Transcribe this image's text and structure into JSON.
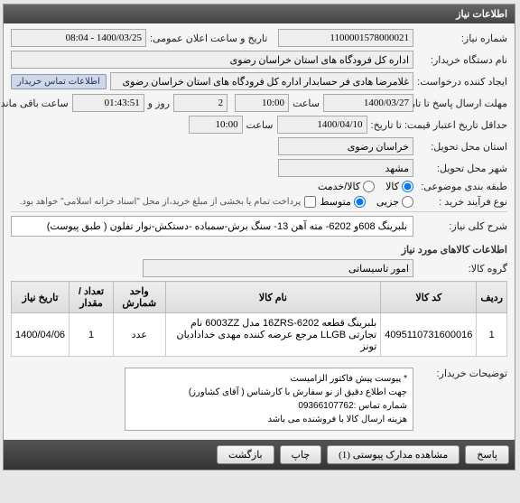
{
  "panel": {
    "title": "اطلاعات نیاز"
  },
  "fields": {
    "need_no": {
      "label": "شماره نیاز:",
      "value": "1100001578000021"
    },
    "announce_datetime": {
      "label": "تاریخ و ساعت اعلان عمومی:",
      "value": "1400/03/25 - 08:04"
    },
    "buyer_org": {
      "label": "نام دستگاه خریدار:",
      "value": "اداره کل فرودگاه های استان خراسان رضوی"
    },
    "request_creator": {
      "label": "ایجاد کننده درخواست:",
      "value": "غلامرضا هادی فر حسابدار اداره کل فرودگاه های استان خراسان رضوی"
    },
    "buyer_contact_btn": "اطلاعات تماس خریدار",
    "deadline": {
      "label": "مهلت ارسال پاسخ تا تاریخ:",
      "date": "1400/03/27",
      "time_label": "ساعت",
      "time": "10:00",
      "days": "2",
      "days_label": "روز و",
      "remain": "01:43:51",
      "remain_label": "ساعت باقی مانده"
    },
    "min_valid": {
      "label": "حداقل تاریخ اعتبار قیمت: تا تاریخ:",
      "date": "1400/04/10",
      "time_label": "ساعت",
      "time": "10:00"
    },
    "delivery_province": {
      "label": "استان محل تحویل:",
      "value": "خراسان رضوی"
    },
    "delivery_city": {
      "label": "شهر محل تحویل:",
      "value": "مشهد"
    },
    "category": {
      "label": "طبقه بندی موضوعی:",
      "options": {
        "goods": "کالا",
        "service": "کالا/خدمت"
      },
      "selected": "goods"
    },
    "buy_process": {
      "label": "نوع فرآیند خرید :",
      "options": {
        "low": "جزیی",
        "medium": "متوسط"
      },
      "selected": "medium",
      "note": "پرداخت تمام یا بخشی از مبلغ خرید،از محل \"اسناد خزانه اسلامی\" خواهد بود.",
      "checkbox_checked": false
    },
    "need_title": {
      "label": "شرح کلی نیاز:",
      "value": "بلبرینگ 608و 6202- مته آهن 13- سنگ برش-سمباده -دستکش-نوار تفلون ( طبق پیوست)"
    }
  },
  "items_section": {
    "title": "اطلاعات کالاهای مورد نیاز",
    "group_label": "گروه کالا:",
    "group_value": "امور تاسیساتی",
    "table": {
      "columns": [
        "ردیف",
        "کد کالا",
        "نام کالا",
        "واحد شمارش",
        "تعداد / مقدار",
        "تاریخ نیاز"
      ],
      "rows": [
        [
          "1",
          "4095110731600016",
          "بلبرینگ قطعه 16ZRS-6202 مدل 6003ZZ نام تجارتی LLGB مرجع عرضه کننده مهدی خدادادیان تونز",
          "عدد",
          "1",
          "1400/04/06"
        ]
      ]
    }
  },
  "buyer_desc": {
    "label": "توضیحات خریدار:",
    "lines": [
      "* پیوست پیش فاکتور الزامیست",
      "جهت اطلاع دقیق از نو سفارش با کارشناس   ( آقای کشاورز)",
      "شماره تماس :09366107762",
      "هزینه ارسال کالا با فروشنده می باشد"
    ]
  },
  "footer": {
    "answer": "پاسخ",
    "view_attach": "مشاهده مدارک پیوستی (1)",
    "print": "چاپ",
    "back": "بازگشت"
  },
  "colors": {
    "header_bg": "#4a4a4a",
    "panel_bg": "#f5f5f5",
    "border": "#999999"
  }
}
